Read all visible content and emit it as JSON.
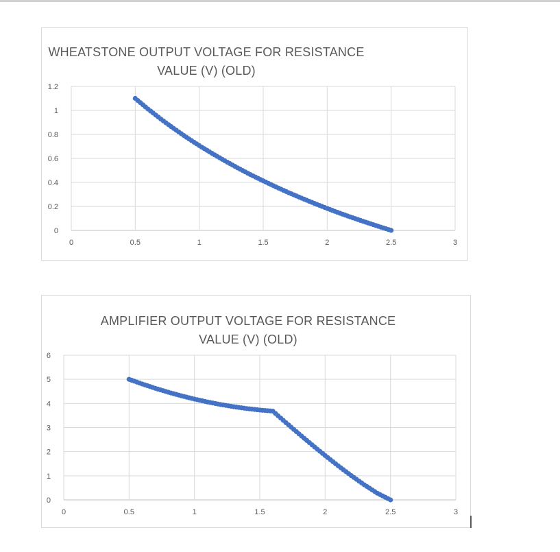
{
  "page": {
    "background": "#ffffff",
    "top_divider_color": "#d1d1d1"
  },
  "decorations": {
    "selection_handle_color": "#595959"
  },
  "chart_data": [
    {
      "type": "scatter",
      "title": "WHEATSTONE OUTPUT VOLTAGE FOR RESISTANCE VALUE (V) (OLD)",
      "title_lines": [
        "WHEATSTONE OUTPUT VOLTAGE FOR RESISTANCE",
        "VALUE (V) (OLD)"
      ],
      "xlabel": "",
      "ylabel": "",
      "xlim": [
        0,
        3
      ],
      "ylim": [
        0,
        1.2
      ],
      "x_tick_labels": [
        "0",
        "0.5",
        "1",
        "1.5",
        "2",
        "2.5",
        "3"
      ],
      "y_tick_labels": [
        "0",
        "0.2",
        "0.4",
        "0.6",
        "0.8",
        "1",
        "1.2"
      ],
      "grid": true,
      "legend": "none",
      "marker_color": "#4472C4",
      "grid_color": "#d9d9d9",
      "axis_color": "#bfbfbf",
      "text_color": "#595959",
      "marker_x_step": 0.02,
      "points": [
        [
          0.5,
          1.1
        ],
        [
          0.6,
          1.011
        ],
        [
          0.7,
          0.928
        ],
        [
          0.8,
          0.85
        ],
        [
          0.9,
          0.776
        ],
        [
          1.0,
          0.707
        ],
        [
          1.1,
          0.642
        ],
        [
          1.2,
          0.58
        ],
        [
          1.3,
          0.521
        ],
        [
          1.4,
          0.465
        ],
        [
          1.5,
          0.413
        ],
        [
          1.6,
          0.362
        ],
        [
          1.7,
          0.314
        ],
        [
          1.8,
          0.269
        ],
        [
          1.9,
          0.225
        ],
        [
          2.0,
          0.183
        ],
        [
          2.1,
          0.143
        ],
        [
          2.2,
          0.105
        ],
        [
          2.3,
          0.069
        ],
        [
          2.4,
          0.034
        ],
        [
          2.5,
          0.0
        ]
      ]
    },
    {
      "type": "scatter",
      "title": "AMPLIFIER OUTPUT VOLTAGE FOR RESISTANCE VALUE (V) (OLD)",
      "title_lines": [
        "AMPLIFIER OUTPUT VOLTAGE FOR RESISTANCE",
        "VALUE (V) (OLD)"
      ],
      "xlabel": "",
      "ylabel": "",
      "xlim": [
        0,
        3
      ],
      "ylim": [
        0,
        6
      ],
      "x_tick_labels": [
        "0",
        "0.5",
        "1",
        "1.5",
        "2",
        "2.5",
        "3"
      ],
      "y_tick_labels": [
        "0",
        "1",
        "2",
        "3",
        "4",
        "5",
        "6"
      ],
      "grid": true,
      "legend": "none",
      "marker_color": "#4472C4",
      "grid_color": "#d9d9d9",
      "axis_color": "#bfbfbf",
      "text_color": "#595959",
      "marker_x_step": 0.02,
      "points": [
        [
          0.5,
          5.0
        ],
        [
          0.6,
          4.807
        ],
        [
          0.7,
          4.628
        ],
        [
          0.8,
          4.464
        ],
        [
          0.9,
          4.315
        ],
        [
          1.0,
          4.18
        ],
        [
          1.1,
          4.06
        ],
        [
          1.2,
          3.955
        ],
        [
          1.3,
          3.864
        ],
        [
          1.4,
          3.788
        ],
        [
          1.5,
          3.726
        ],
        [
          1.6,
          3.68
        ],
        [
          1.7,
          3.202
        ],
        [
          1.8,
          2.736
        ],
        [
          1.9,
          2.281
        ],
        [
          2.0,
          1.839
        ],
        [
          2.1,
          1.413
        ],
        [
          2.2,
          1.006
        ],
        [
          2.3,
          0.624
        ],
        [
          2.4,
          0.275
        ],
        [
          2.5,
          0.0
        ]
      ]
    }
  ]
}
